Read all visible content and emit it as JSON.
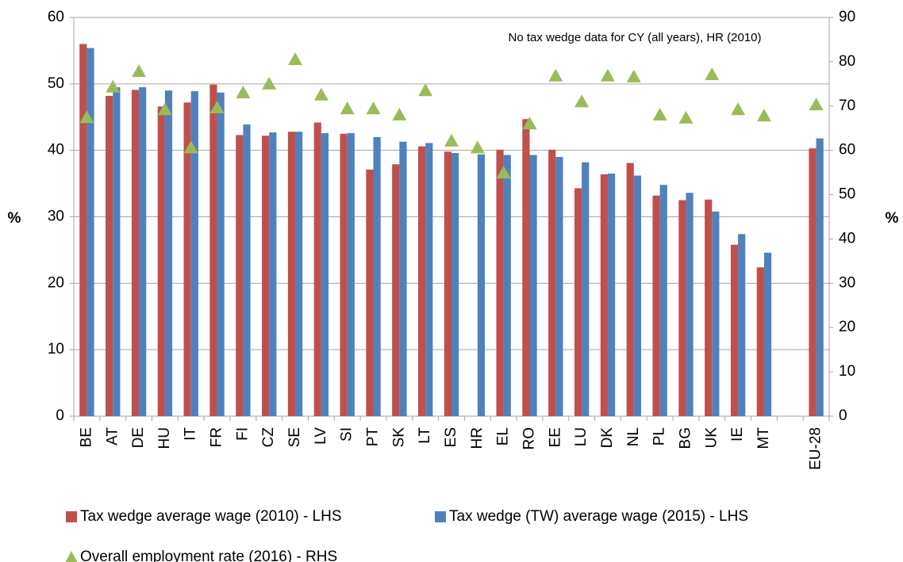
{
  "chart_data": {
    "type": "bar",
    "annotation": "No tax wedge data for CY (all years), HR (2010)",
    "ylabel": "%",
    "y2label": "%",
    "categories": [
      "BE",
      "AT",
      "DE",
      "HU",
      "IT",
      "FR",
      "FI",
      "CZ",
      "SE",
      "LV",
      "SI",
      "PT",
      "SK",
      "LT",
      "ES",
      "HR",
      "EL",
      "RO",
      "EE",
      "LU",
      "DK",
      "NL",
      "PL",
      "BG",
      "UK",
      "IE",
      "MT",
      null,
      "EU-28"
    ],
    "series": [
      {
        "name": "Tax wedge average wage (2010) - LHS",
        "color": "#c0504d",
        "type": "bar",
        "values": [
          56.0,
          48.2,
          49.1,
          46.6,
          47.2,
          49.9,
          42.3,
          42.2,
          42.8,
          44.2,
          42.5,
          37.1,
          37.9,
          40.6,
          39.8,
          null,
          40.1,
          44.7,
          40.1,
          34.3,
          36.4,
          38.1,
          33.2,
          32.5,
          32.6,
          25.8,
          22.4,
          null,
          40.3
        ]
      },
      {
        "name": "Tax wedge (TW) average wage (2015) - LHS",
        "color": "#4f81bd",
        "type": "bar",
        "values": [
          55.4,
          49.5,
          49.5,
          49.0,
          48.9,
          48.7,
          43.9,
          42.7,
          42.8,
          42.6,
          42.6,
          42.0,
          41.3,
          41.1,
          39.6,
          39.4,
          39.3,
          39.3,
          39.0,
          38.2,
          36.5,
          36.2,
          34.8,
          33.6,
          30.8,
          27.4,
          24.6,
          null,
          41.8
        ]
      },
      {
        "name": "Overall employment rate (2016) - RHS",
        "color": "#9bbb59",
        "type": "scatter",
        "axis": "y2",
        "values": [
          67.4,
          74.3,
          77.8,
          69.2,
          60.6,
          69.6,
          73.0,
          75.0,
          80.5,
          72.5,
          69.4,
          69.4,
          68.0,
          73.5,
          62.1,
          60.6,
          54.9,
          66.0,
          76.8,
          71.0,
          76.8,
          76.6,
          68.0,
          67.3,
          77.1,
          69.2,
          67.8,
          null,
          70.3
        ]
      }
    ],
    "ylim": [
      0,
      60
    ],
    "yticks": [
      0,
      10,
      20,
      30,
      40,
      50,
      60
    ],
    "y2lim": [
      0,
      90
    ],
    "y2ticks": [
      0,
      10,
      20,
      30,
      40,
      50,
      60,
      70,
      80,
      90
    ],
    "grid": true
  }
}
